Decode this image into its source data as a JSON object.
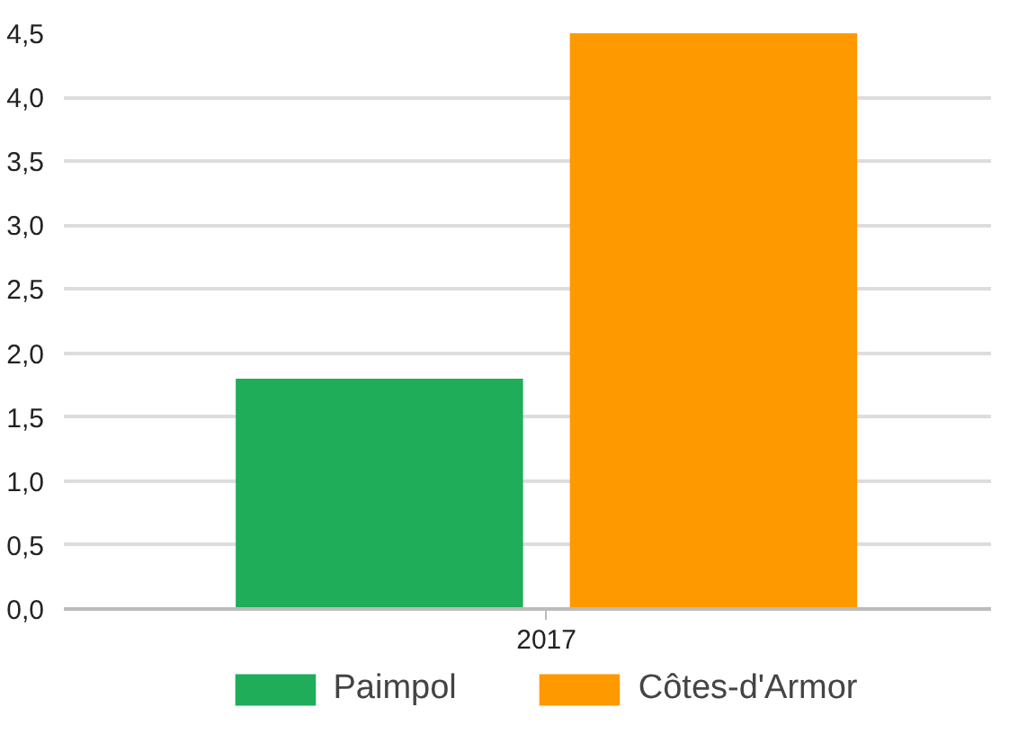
{
  "chart_data": {
    "type": "bar",
    "categories": [
      "2017"
    ],
    "series": [
      {
        "name": "Paimpol",
        "color": "#1fad5a",
        "values": [
          1.8
        ]
      },
      {
        "name": "Côtes-d'Armor",
        "color": "#ff9900",
        "values": [
          4.5
        ]
      }
    ],
    "ylim": [
      0,
      4.5
    ],
    "yticks": [
      {
        "value": 0,
        "label": "0,0"
      },
      {
        "value": 0.5,
        "label": "0,5"
      },
      {
        "value": 1,
        "label": "1,0"
      },
      {
        "value": 1.5,
        "label": "1,5"
      },
      {
        "value": 2,
        "label": "2,0"
      },
      {
        "value": 2.5,
        "label": "2,5"
      },
      {
        "value": 3,
        "label": "3,0"
      },
      {
        "value": 3.5,
        "label": "3,5"
      },
      {
        "value": 4,
        "label": "4,0"
      },
      {
        "value": 4.5,
        "label": "4,5"
      }
    ],
    "grid": "y",
    "legend": "bottom"
  }
}
